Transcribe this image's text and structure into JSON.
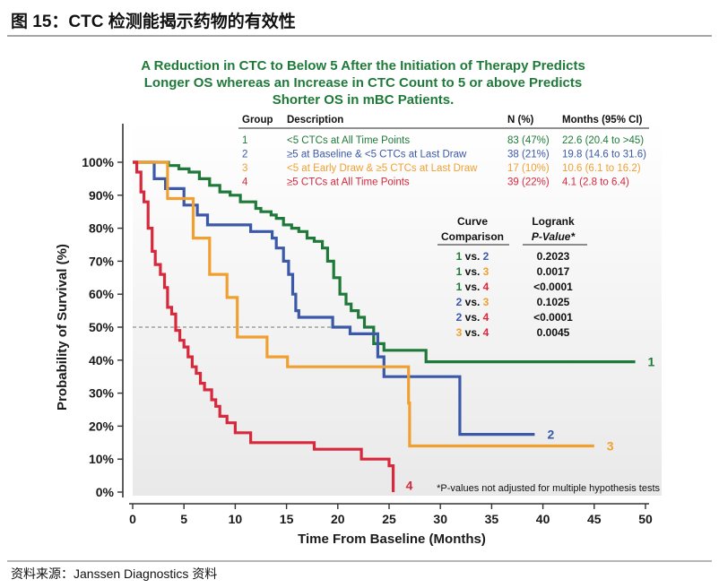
{
  "header": {
    "figure_title": "图 15：CTC 检测能揭示药物的有效性"
  },
  "footer": {
    "source": "资料来源：Janssen Diagnostics 资料"
  },
  "chart_data": {
    "type": "line",
    "step": true,
    "title": "A Reduction in CTC to Below 5 After the Initiation of Therapy Predicts Longer OS whereas an Increase in CTC Count to 5 or above Predicts Shorter OS in mBC Patients.",
    "title_lines": [
      "A Reduction in CTC to Below 5 After the Initiation of Therapy Predicts",
      "Longer OS whereas an Increase in CTC Count to 5 or above Predicts",
      "Shorter OS in mBC Patients."
    ],
    "xlabel": "Time From Baseline (Months)",
    "ylabel": "Probability of Survival (%)",
    "xlim": [
      0,
      50
    ],
    "ylim": [
      0,
      100
    ],
    "xticks": [
      0,
      5,
      10,
      15,
      20,
      25,
      30,
      35,
      40,
      45,
      50
    ],
    "yticks": [
      0,
      10,
      20,
      30,
      40,
      50,
      60,
      70,
      80,
      90,
      100
    ],
    "xtick_labels": [
      "0",
      "5",
      "10",
      "15",
      "20",
      "25",
      "30",
      "35",
      "40",
      "45",
      "50"
    ],
    "ytick_labels": [
      "0%",
      "10%",
      "20%",
      "30%",
      "40%",
      "50%",
      "60%",
      "70%",
      "80%",
      "90%",
      "100%"
    ],
    "median_line_y": 50,
    "colors": {
      "1": "#1f7a3a",
      "2": "#3b59a8",
      "3": "#f0a030",
      "4": "#d8283c"
    },
    "series": [
      {
        "name": "1",
        "color": "#1f7a3a",
        "points": [
          [
            0,
            100
          ],
          [
            3.5,
            100
          ],
          [
            3.5,
            99
          ],
          [
            4.5,
            99
          ],
          [
            4.5,
            98
          ],
          [
            5.5,
            98
          ],
          [
            5.5,
            97
          ],
          [
            6.5,
            97
          ],
          [
            6.5,
            95
          ],
          [
            7.5,
            95
          ],
          [
            7.5,
            93
          ],
          [
            8.5,
            93
          ],
          [
            8.5,
            91
          ],
          [
            9.5,
            91
          ],
          [
            9.5,
            90
          ],
          [
            10.5,
            90
          ],
          [
            10.5,
            88
          ],
          [
            12,
            88
          ],
          [
            12,
            86
          ],
          [
            12.5,
            86
          ],
          [
            12.5,
            85
          ],
          [
            13.5,
            85
          ],
          [
            13.5,
            84
          ],
          [
            14,
            84
          ],
          [
            14,
            83
          ],
          [
            14.7,
            83
          ],
          [
            14.7,
            81
          ],
          [
            15.5,
            81
          ],
          [
            15.5,
            80
          ],
          [
            16.2,
            80
          ],
          [
            16.2,
            79
          ],
          [
            17,
            79
          ],
          [
            17,
            77
          ],
          [
            17.7,
            77
          ],
          [
            17.7,
            76
          ],
          [
            18.5,
            76
          ],
          [
            18.5,
            74
          ],
          [
            19,
            74
          ],
          [
            19,
            70
          ],
          [
            19.6,
            70
          ],
          [
            19.6,
            65
          ],
          [
            20.2,
            65
          ],
          [
            20.2,
            60
          ],
          [
            20.8,
            60
          ],
          [
            20.8,
            57
          ],
          [
            21.3,
            57
          ],
          [
            21.3,
            55
          ],
          [
            22,
            55
          ],
          [
            22,
            53
          ],
          [
            22.6,
            53
          ],
          [
            22.6,
            50
          ],
          [
            23.5,
            50
          ],
          [
            23.5,
            45
          ],
          [
            24.5,
            45
          ],
          [
            24.5,
            43
          ],
          [
            28.6,
            43
          ],
          [
            28.6,
            39.5
          ],
          [
            49,
            39.5
          ]
        ]
      },
      {
        "name": "2",
        "color": "#3b59a8",
        "points": [
          [
            0,
            100
          ],
          [
            2.1,
            100
          ],
          [
            2.1,
            95
          ],
          [
            3.2,
            95
          ],
          [
            3.2,
            92
          ],
          [
            5,
            92
          ],
          [
            5,
            87
          ],
          [
            6.3,
            87
          ],
          [
            6.3,
            84
          ],
          [
            7.3,
            84
          ],
          [
            7.3,
            81
          ],
          [
            11.5,
            81
          ],
          [
            11.5,
            79
          ],
          [
            13.6,
            79
          ],
          [
            13.6,
            77
          ],
          [
            14,
            77
          ],
          [
            14,
            74
          ],
          [
            14.7,
            74
          ],
          [
            14.7,
            70
          ],
          [
            15.2,
            70
          ],
          [
            15.2,
            66
          ],
          [
            15.6,
            66
          ],
          [
            15.6,
            60
          ],
          [
            15.9,
            60
          ],
          [
            15.9,
            55
          ],
          [
            16.2,
            55
          ],
          [
            16.2,
            53
          ],
          [
            19.5,
            53
          ],
          [
            19.5,
            50
          ],
          [
            21.2,
            50
          ],
          [
            21.2,
            48
          ],
          [
            23.9,
            48
          ],
          [
            23.9,
            41
          ],
          [
            24.5,
            41
          ],
          [
            24.5,
            35
          ],
          [
            31.9,
            35
          ],
          [
            31.9,
            17.5
          ],
          [
            39.2,
            17.5
          ]
        ]
      },
      {
        "name": "3",
        "color": "#f0a030",
        "points": [
          [
            0,
            100
          ],
          [
            3.4,
            100
          ],
          [
            3.4,
            89
          ],
          [
            5.9,
            89
          ],
          [
            5.9,
            77
          ],
          [
            7.5,
            77
          ],
          [
            7.5,
            66
          ],
          [
            9.2,
            66
          ],
          [
            9.2,
            59
          ],
          [
            10.2,
            59
          ],
          [
            10.2,
            47
          ],
          [
            13.1,
            47
          ],
          [
            13.1,
            41
          ],
          [
            15.1,
            41
          ],
          [
            15.1,
            38
          ],
          [
            26.9,
            38
          ],
          [
            26.9,
            27
          ],
          [
            27,
            27
          ],
          [
            27,
            14
          ],
          [
            45,
            14
          ]
        ]
      },
      {
        "name": "4",
        "color": "#d8283c",
        "points": [
          [
            0,
            100
          ],
          [
            0.4,
            100
          ],
          [
            0.4,
            97
          ],
          [
            0.8,
            97
          ],
          [
            0.8,
            91
          ],
          [
            1.1,
            91
          ],
          [
            1.1,
            88
          ],
          [
            1.5,
            88
          ],
          [
            1.5,
            80
          ],
          [
            1.9,
            80
          ],
          [
            1.9,
            73
          ],
          [
            2.2,
            73
          ],
          [
            2.2,
            69
          ],
          [
            2.7,
            69
          ],
          [
            2.7,
            66
          ],
          [
            3.1,
            66
          ],
          [
            3.1,
            62
          ],
          [
            3.4,
            62
          ],
          [
            3.4,
            56
          ],
          [
            3.8,
            56
          ],
          [
            3.8,
            54
          ],
          [
            4.2,
            54
          ],
          [
            4.2,
            49
          ],
          [
            4.6,
            49
          ],
          [
            4.6,
            46
          ],
          [
            5,
            46
          ],
          [
            5,
            44
          ],
          [
            5.4,
            44
          ],
          [
            5.4,
            41
          ],
          [
            5.8,
            41
          ],
          [
            5.8,
            38
          ],
          [
            6.2,
            38
          ],
          [
            6.2,
            36
          ],
          [
            6.6,
            36
          ],
          [
            6.6,
            33
          ],
          [
            7,
            33
          ],
          [
            7,
            31
          ],
          [
            7.7,
            31
          ],
          [
            7.7,
            28
          ],
          [
            8.1,
            28
          ],
          [
            8.1,
            26
          ],
          [
            8.5,
            26
          ],
          [
            8.5,
            23
          ],
          [
            9.2,
            23
          ],
          [
            9.2,
            21
          ],
          [
            10,
            21
          ],
          [
            10,
            18
          ],
          [
            11.5,
            18
          ],
          [
            11.5,
            15
          ],
          [
            17.7,
            15
          ],
          [
            17.7,
            13
          ],
          [
            22.3,
            13
          ],
          [
            22.3,
            10
          ],
          [
            25,
            10
          ],
          [
            25,
            8
          ],
          [
            25.4,
            8
          ],
          [
            25.4,
            0
          ]
        ]
      }
    ],
    "end_labels": [
      {
        "text": "1",
        "x": 49,
        "y": 39.5,
        "color": "#1f7a3a"
      },
      {
        "text": "2",
        "x": 39.2,
        "y": 17.5,
        "color": "#3b59a8"
      },
      {
        "text": "3",
        "x": 45,
        "y": 14,
        "color": "#f0a030"
      },
      {
        "text": "4",
        "x": 25.4,
        "y": 2,
        "color": "#d8283c"
      }
    ],
    "group_table": {
      "headers": [
        "Group",
        "Description",
        "N (%)",
        "Months (95% CI)"
      ],
      "rows": [
        {
          "group": "1",
          "description": "<5 CTCs at All Time Points",
          "n": "83 (47%)",
          "months": "22.6  (20.4 to >45)",
          "color": "#1f7a3a"
        },
        {
          "group": "2",
          "description": "≥5 at Baseline & <5 CTCs at Last Draw",
          "n": "38 (21%)",
          "months": "19.8  (14.6 to 31.6)",
          "color": "#3b59a8"
        },
        {
          "group": "3",
          "description": "<5 at Early Draw & ≥5 CTCs at Last Draw",
          "n": "17 (10%)",
          "months": "10.6  (6.1 to 16.2)",
          "color": "#f0a030"
        },
        {
          "group": "4",
          "description": "≥5 CTCs at All Time Points",
          "n": "39 (22%)",
          "months": "4.1  (2.8 to 6.4)",
          "color": "#d8283c"
        }
      ]
    },
    "logrank_table": {
      "header_left_1": "Curve",
      "header_left_2": "Comparison",
      "header_right_1": "Logrank",
      "header_right_2": "P-Value*",
      "rows": [
        {
          "a": "1",
          "b": "2",
          "vs": "vs.",
          "p": "0.2023"
        },
        {
          "a": "1",
          "b": "3",
          "vs": "vs.",
          "p": "0.0017"
        },
        {
          "a": "1",
          "b": "4",
          "vs": "vs.",
          "p": "<0.0001"
        },
        {
          "a": "2",
          "b": "3",
          "vs": "vs.",
          "p": "0.1025"
        },
        {
          "a": "2",
          "b": "4",
          "vs": "vs.",
          "p": "<0.0001"
        },
        {
          "a": "3",
          "b": "4",
          "vs": "vs.",
          "p": "0.0045"
        }
      ]
    },
    "footnote": "*P-values not adjusted for multiple hypothesis tests"
  }
}
